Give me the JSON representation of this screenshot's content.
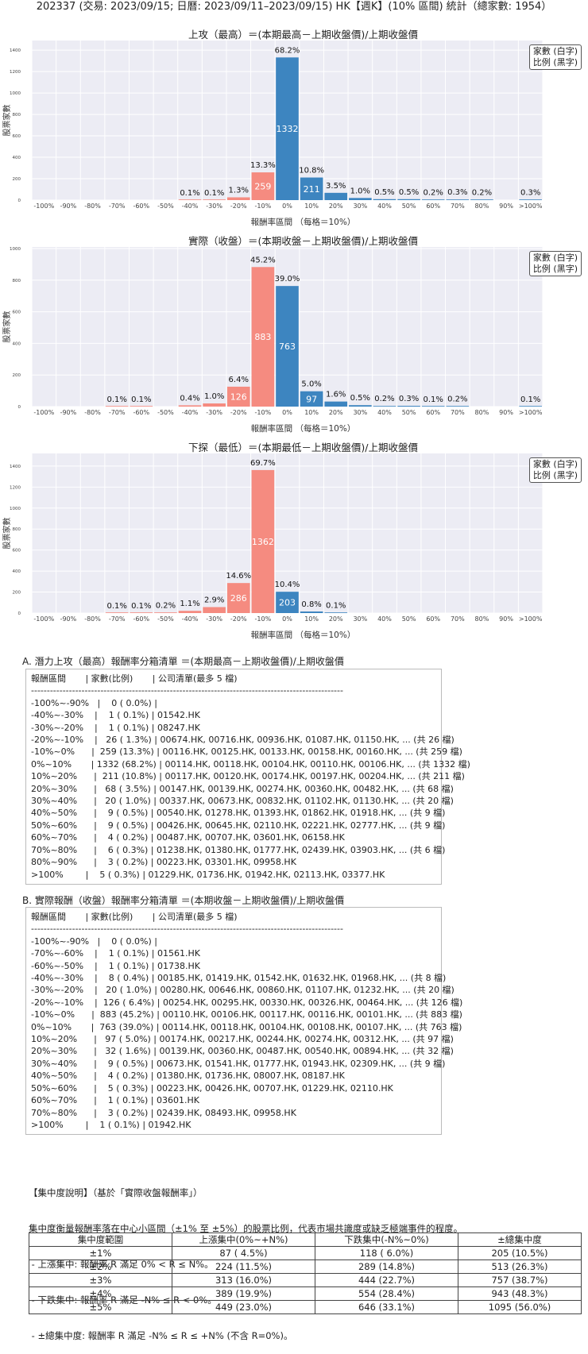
{
  "header": "202337 (交易: 2023/09/15; 日曆: 2023/09/11–2023/09/15) HK【週K】(10% 區間) 統計（總家數: 1954）",
  "legend": [
    "家數 (白字)",
    "比例 (黑字)"
  ],
  "colors": {
    "positive": "#3d85c0",
    "negative": "#f58b80",
    "grid_bg": "#ececf4"
  },
  "chart_data": [
    {
      "type": "bar",
      "title": "上攻（最高）＝(本期最高－上期收盤價)/上期收盤價",
      "xlabel": "報酬率區間 （每格＝10%）",
      "ylabel": "股票家數",
      "categories": [
        "-100%",
        "-90%",
        "-80%",
        "-70%",
        "-60%",
        "-50%",
        "-40%",
        "-30%",
        "-20%",
        "-10%",
        "0%",
        "10%",
        "20%",
        "30%",
        "40%",
        "50%",
        "60%",
        "70%",
        "80%",
        "90%",
        ">100%"
      ],
      "values": [
        0,
        0,
        0,
        0,
        0,
        0,
        1,
        1,
        26,
        259,
        1332,
        211,
        68,
        20,
        9,
        9,
        4,
        6,
        3,
        0,
        5
      ],
      "labels": [
        "",
        "",
        "",
        "",
        "",
        "",
        "0.1%",
        "0.1%",
        "1.3%",
        "13.3%",
        "68.2%",
        "10.8%",
        "3.5%",
        "1.0%",
        "0.5%",
        "0.5%",
        "0.2%",
        "0.3%",
        "0.2%",
        "",
        "0.3%"
      ],
      "yticks": [
        0,
        200,
        400,
        600,
        800,
        1000,
        1200,
        1400
      ],
      "ylim": [
        0,
        1490
      ]
    },
    {
      "type": "bar",
      "title": "實際（收盤）＝(本期收盤－上期收盤價)/上期收盤價",
      "xlabel": "報酬率區間 （每格＝10%）",
      "ylabel": "股票家數",
      "categories": [
        "-100%",
        "-90%",
        "-80%",
        "-70%",
        "-60%",
        "-50%",
        "-40%",
        "-30%",
        "-20%",
        "-10%",
        "0%",
        "10%",
        "20%",
        "30%",
        "40%",
        "50%",
        "60%",
        "70%",
        "80%",
        "90%",
        ">100%"
      ],
      "values": [
        0,
        0,
        0,
        1,
        1,
        0,
        8,
        20,
        126,
        883,
        763,
        97,
        32,
        9,
        4,
        5,
        1,
        3,
        0,
        0,
        1
      ],
      "labels": [
        "",
        "",
        "",
        "0.1%",
        "0.1%",
        "",
        "0.4%",
        "1.0%",
        "6.4%",
        "45.2%",
        "39.0%",
        "5.0%",
        "1.6%",
        "0.5%",
        "0.2%",
        "0.3%",
        "0.1%",
        "0.2%",
        "",
        "",
        "0.1%"
      ],
      "yticks": [
        0,
        200,
        400,
        600,
        800,
        1000
      ],
      "ylim": [
        0,
        1010
      ]
    },
    {
      "type": "bar",
      "title": "下探（最低）＝(本期最低－上期收盤價)/上期收盤價",
      "xlabel": "報酬率區間 （每格＝10%）",
      "ylabel": "股票家數",
      "categories": [
        "-100%",
        "-90%",
        "-80%",
        "-70%",
        "-60%",
        "-50%",
        "-40%",
        "-30%",
        "-20%",
        "-10%",
        "0%",
        "10%",
        "20%",
        "30%",
        "40%",
        "50%",
        "60%",
        "70%",
        "80%",
        "90%",
        ">100%"
      ],
      "values": [
        0,
        0,
        0,
        1,
        1,
        4,
        21,
        57,
        286,
        1362,
        203,
        15,
        2,
        0,
        0,
        0,
        0,
        0,
        0,
        0,
        0
      ],
      "labels": [
        "",
        "",
        "",
        "0.1%",
        "0.1%",
        "0.2%",
        "1.1%",
        "2.9%",
        "14.6%",
        "69.7%",
        "10.4%",
        "0.8%",
        "0.1%",
        "",
        "",
        "",
        "",
        "",
        "",
        "",
        ""
      ],
      "yticks": [
        0,
        200,
        400,
        600,
        800,
        1000,
        1200,
        1400
      ],
      "ylim": [
        0,
        1520
      ]
    }
  ],
  "sectionA": {
    "title": "A. 潛力上攻（最高）報酬率分箱清單 ＝(本期最高－上期收盤價)/上期收盤價",
    "rows": [
      "報酬區間       | 家數(比例)       | 公司清單(最多 5 檔)",
      "---------------------------------------------------------------------------------------------------",
      "-100%~-90%   |    0 ( 0.0%) |",
      "-40%~-30%    |    1 ( 0.1%) | 01542.HK",
      "-30%~-20%    |    1 ( 0.1%) | 08247.HK",
      "-20%~-10%    |   26 ( 1.3%) | 00674.HK, 00716.HK, 00936.HK, 01087.HK, 01150.HK, ... (共 26 檔)",
      "-10%~0%      |  259 (13.3%) | 00116.HK, 00125.HK, 00133.HK, 00158.HK, 00160.HK, ... (共 259 檔)",
      "0%~10%       | 1332 (68.2%) | 00114.HK, 00118.HK, 00104.HK, 00110.HK, 00106.HK, ... (共 1332 檔)",
      "10%~20%      |  211 (10.8%) | 00117.HK, 00120.HK, 00174.HK, 00197.HK, 00204.HK, ... (共 211 檔)",
      "20%~30%      |   68 ( 3.5%) | 00147.HK, 00139.HK, 00274.HK, 00360.HK, 00482.HK, ... (共 68 檔)",
      "30%~40%      |   20 ( 1.0%) | 00337.HK, 00673.HK, 00832.HK, 01102.HK, 01130.HK, ... (共 20 檔)",
      "40%~50%      |    9 ( 0.5%) | 00540.HK, 01278.HK, 01393.HK, 01862.HK, 01918.HK, ... (共 9 檔)",
      "50%~60%      |    9 ( 0.5%) | 00426.HK, 00645.HK, 02110.HK, 02221.HK, 02777.HK, ... (共 9 檔)",
      "60%~70%      |    4 ( 0.2%) | 00487.HK, 00707.HK, 03601.HK, 06158.HK",
      "70%~80%      |    6 ( 0.3%) | 01238.HK, 01380.HK, 01777.HK, 02439.HK, 03903.HK, ... (共 6 檔)",
      "80%~90%      |    3 ( 0.2%) | 00223.HK, 03301.HK, 09958.HK",
      ">100%        |    5 ( 0.3%) | 01229.HK, 01736.HK, 01942.HK, 02113.HK, 03377.HK"
    ]
  },
  "sectionB": {
    "title": "B. 實際報酬（收盤）報酬率分箱清單 ＝(本期收盤－上期收盤價)/上期收盤價",
    "rows": [
      "報酬區間       | 家數(比例)       | 公司清單(最多 5 檔)",
      "---------------------------------------------------------------------------------------------------",
      "-100%~-90%   |    0 ( 0.0%) |",
      "-70%~-60%    |    1 ( 0.1%) | 01561.HK",
      "-60%~-50%    |    1 ( 0.1%) | 01738.HK",
      "-40%~-30%    |    8 ( 0.4%) | 00185.HK, 01419.HK, 01542.HK, 01632.HK, 01968.HK, ... (共 8 檔)",
      "-30%~-20%    |   20 ( 1.0%) | 00280.HK, 00646.HK, 00860.HK, 01107.HK, 01232.HK, ... (共 20 檔)",
      "-20%~-10%    |  126 ( 6.4%) | 00254.HK, 00295.HK, 00330.HK, 00326.HK, 00464.HK, ... (共 126 檔)",
      "-10%~0%      |  883 (45.2%) | 00110.HK, 00106.HK, 00117.HK, 00116.HK, 00101.HK, ... (共 883 檔)",
      "0%~10%       |  763 (39.0%) | 00114.HK, 00118.HK, 00104.HK, 00108.HK, 00107.HK, ... (共 763 檔)",
      "10%~20%      |   97 ( 5.0%) | 00174.HK, 00217.HK, 00244.HK, 00274.HK, 00312.HK, ... (共 97 檔)",
      "20%~30%      |   32 ( 1.6%) | 00139.HK, 00360.HK, 00487.HK, 00540.HK, 00894.HK, ... (共 32 檔)",
      "30%~40%      |    9 ( 0.5%) | 00673.HK, 01541.HK, 01777.HK, 01943.HK, 02309.HK, ... (共 9 檔)",
      "40%~50%      |    4 ( 0.2%) | 01380.HK, 01736.HK, 08007.HK, 08187.HK",
      "50%~60%      |    5 ( 0.3%) | 00223.HK, 00426.HK, 00707.HK, 01229.HK, 02110.HK",
      "60%~70%      |    1 ( 0.1%) | 03601.HK",
      "70%~80%      |    3 ( 0.2%) | 02439.HK, 08493.HK, 09958.HK",
      ">100%        |    1 ( 0.1%) | 01942.HK"
    ]
  },
  "concentration": {
    "desc": [
      "【集中度說明】（基於「實際收盤報酬率」）",
      "集中度衡量報酬率落在中心小區間（±1% 至 ±5%）的股票比例，代表市場共識度或缺乏極端事件的程度。",
      " - 上漲集中: 報酬率 R 滿足 0% < R ≤ N%。",
      " - 下跌集中: 報酬率 R 滿足 -N% ≤ R < 0%。",
      " - ±總集中度: 報酬率 R 滿足 -N% ≤ R ≤ +N% (不含 R=0%)。"
    ],
    "headers": [
      "集中度範圍",
      "上漲集中(0%~+N%)",
      "下跌集中(-N%~0%)",
      "±總集中度"
    ],
    "rows": [
      [
        "±1%",
        "87 ( 4.5%)",
        "118 ( 6.0%)",
        "205 (10.5%)"
      ],
      [
        "±2%",
        "224 (11.5%)",
        "289 (14.8%)",
        "513 (26.3%)"
      ],
      [
        "±3%",
        "313 (16.0%)",
        "444 (22.7%)",
        "757 (38.7%)"
      ],
      [
        "±4%",
        "389 (19.9%)",
        "554 (28.4%)",
        "943 (48.3%)"
      ],
      [
        "±5%",
        "449 (23.0%)",
        "646 (33.1%)",
        "1095 (56.0%)"
      ]
    ]
  }
}
